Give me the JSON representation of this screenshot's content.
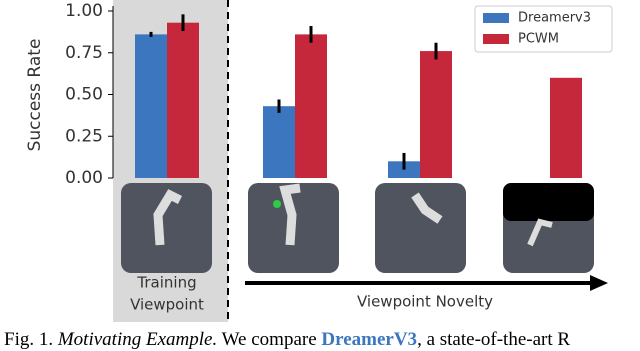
{
  "chart_data": {
    "type": "bar",
    "y_label": "Success Rate",
    "categories": [
      null,
      null,
      null,
      null
    ],
    "series": [
      {
        "name": "Dreamerv3",
        "color": "#3b76be",
        "values": [
          0.86,
          0.43,
          0.1,
          null
        ],
        "errors": [
          0.015,
          0.04,
          0.05,
          null
        ]
      },
      {
        "name": "PCWM",
        "color": "#c5283a",
        "values": [
          0.93,
          0.86,
          0.76,
          0.6
        ],
        "errors": [
          0.05,
          0.05,
          0.05,
          0.0
        ]
      }
    ],
    "ylim": [
      0,
      1
    ],
    "yticks": [
      {
        "value": 0,
        "label": "0.00"
      },
      {
        "value": 0.25,
        "label": "0.25"
      },
      {
        "value": 0.5,
        "label": "0.50"
      },
      {
        "value": 0.75,
        "label": "0.75"
      },
      {
        "value": 1,
        "label": "1.00"
      }
    ],
    "legend": "upper-right",
    "annotations": {
      "training_1": "Training",
      "training_2": "Viewpoint",
      "novelty": "Viewpoint Novelty"
    }
  },
  "caption": {
    "label": "Fig. 1.",
    "title": "Motivating Example.",
    "text": "We compare",
    "highlight": "DreamerV3",
    "rest": ", a state-of-the-art R"
  }
}
